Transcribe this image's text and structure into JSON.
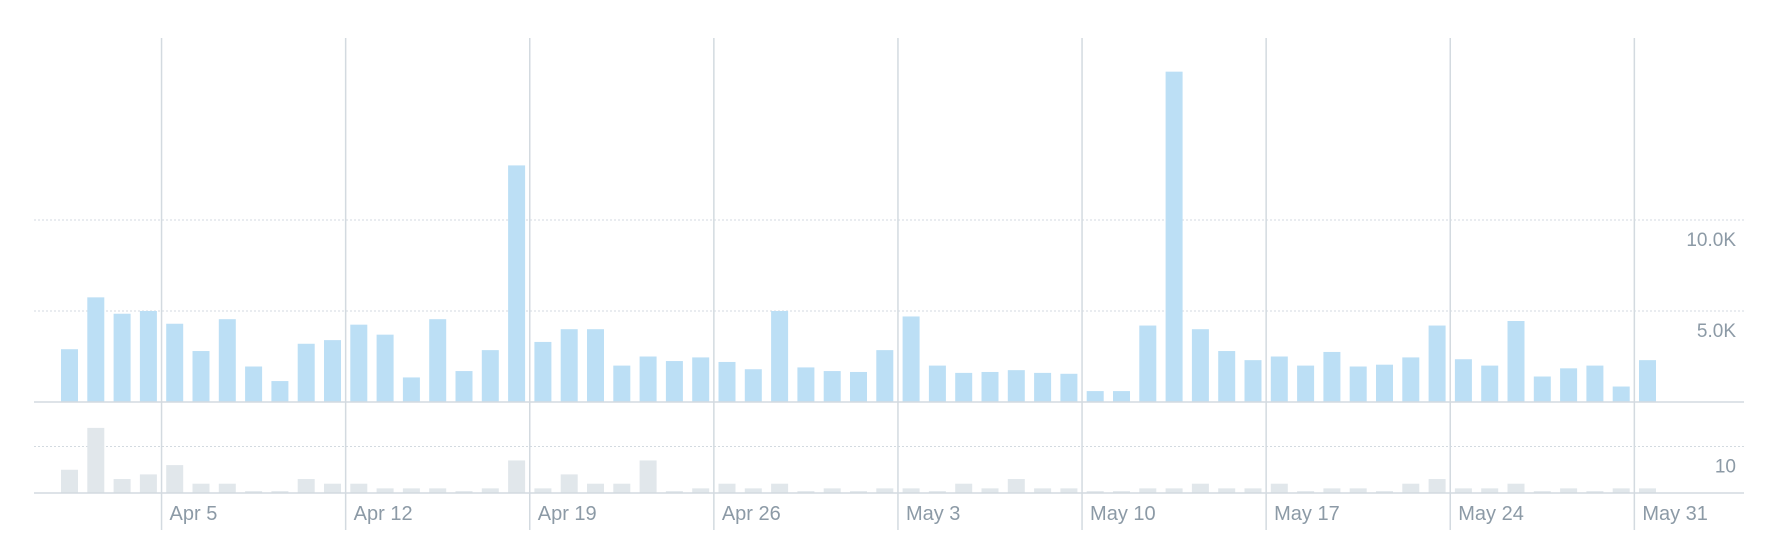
{
  "chart_data": [
    {
      "type": "bar",
      "series": [
        {
          "values": [
            2900,
            5750,
            4850,
            5000,
            4300,
            2800,
            4550,
            1950,
            1150,
            3200,
            3400,
            4250,
            3700,
            1350,
            4550,
            1700,
            2850,
            13000,
            3300,
            4000,
            4000,
            2000,
            2500,
            2250,
            2450,
            2200,
            1800,
            5000,
            1900,
            1700,
            1650,
            2850,
            4700,
            2000,
            1600,
            1650,
            1750,
            1600,
            1550,
            600,
            600,
            4200,
            18150,
            4000,
            2800,
            2300,
            2500,
            2000,
            2750,
            1950,
            2050,
            2450,
            4200,
            2350,
            2000,
            4450,
            1400,
            1850,
            2000,
            850,
            2300
          ],
          "color": "#bcdff5"
        }
      ],
      "y_axis": {
        "ticks": [
          "10.0K",
          "5.0K"
        ],
        "tick_values": [
          10000,
          5000
        ],
        "ylim": [
          0,
          20000
        ]
      },
      "grid": true
    },
    {
      "type": "bar",
      "series": [
        {
          "values": [
            5,
            14,
            3,
            4,
            6,
            2,
            2,
            0.4,
            0.4,
            3,
            2,
            2,
            1,
            1,
            1,
            0.4,
            1,
            7,
            1,
            4,
            2,
            2,
            7,
            0.4,
            1,
            2,
            1,
            2,
            0.4,
            1,
            0.4,
            1,
            1,
            0.4,
            2,
            1,
            3,
            1,
            1,
            0.4,
            0.4,
            1,
            1,
            2,
            1,
            1,
            2,
            0.4,
            1,
            1,
            0.4,
            2,
            3,
            1,
            1,
            2,
            0.4,
            1,
            0.4,
            1,
            1
          ],
          "color": "#e1e7eb"
        }
      ],
      "y_axis": {
        "ticks": [
          "10"
        ],
        "tick_values": [
          10
        ],
        "ylim": [
          0,
          20
        ]
      },
      "grid": true
    }
  ],
  "x_axis": {
    "ticks": [
      {
        "label": "Apr 5",
        "index": 4
      },
      {
        "label": "Apr 12",
        "index": 11
      },
      {
        "label": "Apr 19",
        "index": 18
      },
      {
        "label": "Apr 26",
        "index": 25
      },
      {
        "label": "May 3",
        "index": 32
      },
      {
        "label": "May 10",
        "index": 39
      },
      {
        "label": "May 17",
        "index": 46
      },
      {
        "label": "May 24",
        "index": 53
      },
      {
        "label": "May 31",
        "index": 60
      }
    ]
  },
  "colors": {
    "gridline": "#d3dae0",
    "axis_text": "#8c9aa6"
  }
}
